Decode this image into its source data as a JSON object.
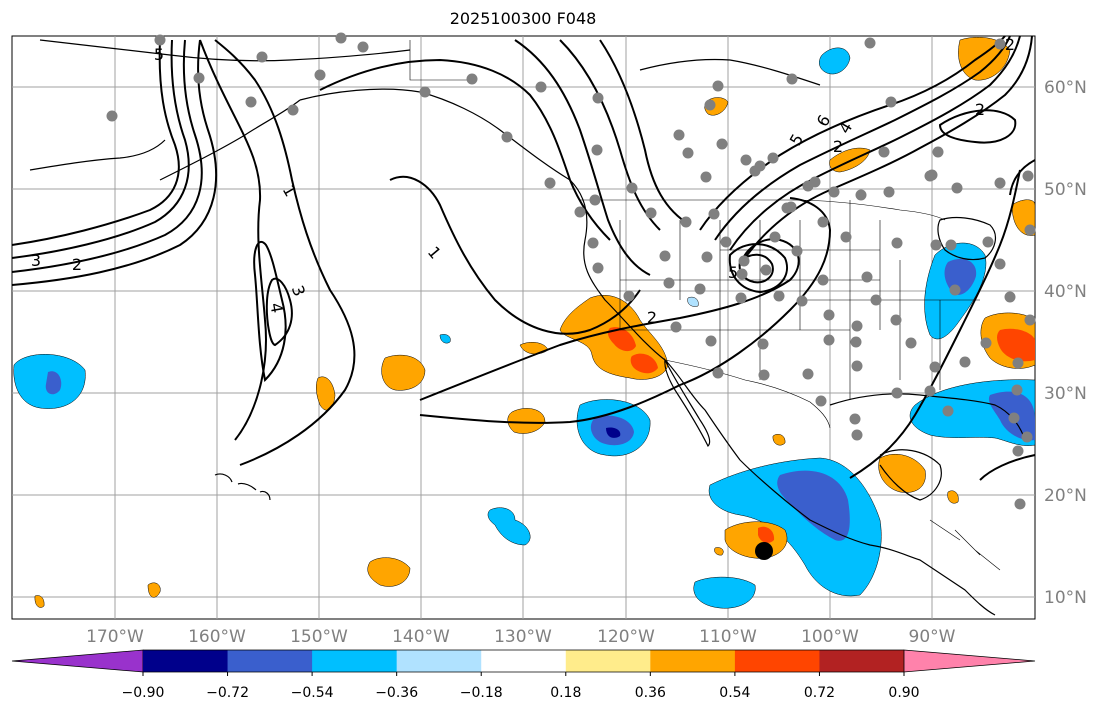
{
  "title": "2025100300 F048",
  "map": {
    "lon_labels": [
      "170°W",
      "160°W",
      "150°W",
      "140°W",
      "130°W",
      "120°W",
      "110°W",
      "100°W",
      "90°W"
    ],
    "lat_labels": [
      "60°N",
      "50°N",
      "40°N",
      "30°N",
      "20°N",
      "10°N"
    ],
    "label_color": "#808080",
    "grid_color": "#a0a0a0",
    "contour_labels": [
      "3",
      "2",
      "1",
      "3",
      "4",
      "1",
      "2",
      "5",
      "2",
      "2",
      "5",
      "6",
      "4",
      "2",
      "5"
    ],
    "station_marker_color": "#808080",
    "storm_marker_color": "#000000"
  },
  "colorbar": {
    "ticks": [
      "−0.90",
      "−0.72",
      "−0.54",
      "−0.36",
      "−0.18",
      "0.18",
      "0.36",
      "0.54",
      "0.72",
      "0.90"
    ],
    "colors": [
      "#9932cc",
      "#00008b",
      "#3a5fcd",
      "#00bfff",
      "#b0e2ff",
      "#ffffff",
      "#ffec8b",
      "#ffa500",
      "#ff4500",
      "#b22222",
      "#ff82ab"
    ]
  }
}
